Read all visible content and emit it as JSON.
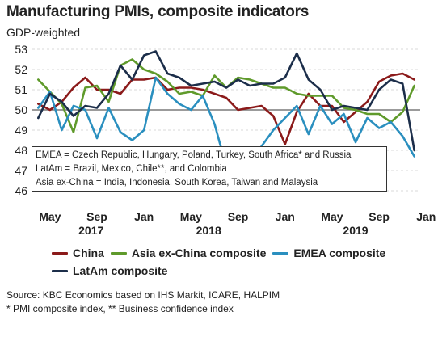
{
  "title": "Manufacturing PMIs, composite indicators",
  "subtitle": "GDP-weighted",
  "notes": [
    "EMEA = Czech Republic, Hungary, Poland, Turkey, South Africa* and Russia",
    "LatAm = Brazil, Mexico, Chile**, and Colombia",
    "Asia ex-China = India, Indonesia, South Korea, Taiwan and Malaysia"
  ],
  "source": [
    "Source: KBC Economics based on IHS Markit, ICARE, HALPIM",
    "* PMI composite index, ** Business confidence index"
  ],
  "chart_data": {
    "type": "line",
    "x_labels": [
      "May",
      "Sep",
      "Jan",
      "May",
      "Sep",
      "Jan",
      "May",
      "Sep",
      "Jan"
    ],
    "year_labels": [
      "2017",
      "2018",
      "2019"
    ],
    "x": [
      "2017-04",
      "2017-05",
      "2017-06",
      "2017-07",
      "2017-08",
      "2017-09",
      "2017-10",
      "2017-11",
      "2017-12",
      "2018-01",
      "2018-02",
      "2018-03",
      "2018-04",
      "2018-05",
      "2018-06",
      "2018-07",
      "2018-08",
      "2018-09",
      "2018-10",
      "2018-11",
      "2018-12",
      "2019-01",
      "2019-02",
      "2019-03",
      "2019-04",
      "2019-05",
      "2019-06",
      "2019-07",
      "2019-08",
      "2019-09",
      "2019-10",
      "2019-11",
      "2019-12"
    ],
    "ylim": [
      46,
      53
    ],
    "yticks": [
      46,
      47,
      48,
      49,
      50,
      51,
      52,
      53
    ],
    "reference_line": 50,
    "series": [
      {
        "name": "China",
        "color": "#8b1a1a",
        "values": [
          50.3,
          50.0,
          50.4,
          51.1,
          51.6,
          51.0,
          51.0,
          50.8,
          51.5,
          51.5,
          51.6,
          51.0,
          51.1,
          51.1,
          51.0,
          50.8,
          50.6,
          50.0,
          50.1,
          50.2,
          49.7,
          48.3,
          49.9,
          50.8,
          50.2,
          50.2,
          49.4,
          49.9,
          50.4,
          51.4,
          51.7,
          51.8,
          51.5
        ]
      },
      {
        "name": "Asia ex-China composite",
        "color": "#5f9a2b",
        "values": [
          51.5,
          50.9,
          50.3,
          48.9,
          51.1,
          51.2,
          50.4,
          52.2,
          52.5,
          52.0,
          51.8,
          51.4,
          50.8,
          50.9,
          50.7,
          51.7,
          51.1,
          51.6,
          51.5,
          51.3,
          51.1,
          51.1,
          50.8,
          50.7,
          50.7,
          50.7,
          50.1,
          50.0,
          49.8,
          49.8,
          49.4,
          49.9,
          51.2
        ]
      },
      {
        "name": "EMEA composite",
        "color": "#2a8fbf",
        "values": [
          50.1,
          50.9,
          49.0,
          50.2,
          50.0,
          48.6,
          50.1,
          48.9,
          48.5,
          49.0,
          51.6,
          50.8,
          50.3,
          50.0,
          50.7,
          49.3,
          47.2,
          48.0,
          46.9,
          48.2,
          49.0,
          49.6,
          50.2,
          48.8,
          50.2,
          49.3,
          49.8,
          48.4,
          49.6,
          49.1,
          49.4,
          48.7,
          47.7
        ]
      },
      {
        "name": "LatAm composite",
        "color": "#1c2e4a",
        "values": [
          49.6,
          50.8,
          50.4,
          49.7,
          50.2,
          50.1,
          50.8,
          52.2,
          51.5,
          52.7,
          52.9,
          51.8,
          51.6,
          51.2,
          51.3,
          51.4,
          51.1,
          51.5,
          51.2,
          51.3,
          51.3,
          51.6,
          52.8,
          51.5,
          51.0,
          50.0,
          50.2,
          50.1,
          50.0,
          51.0,
          51.5,
          51.3,
          48.0
        ]
      }
    ]
  }
}
